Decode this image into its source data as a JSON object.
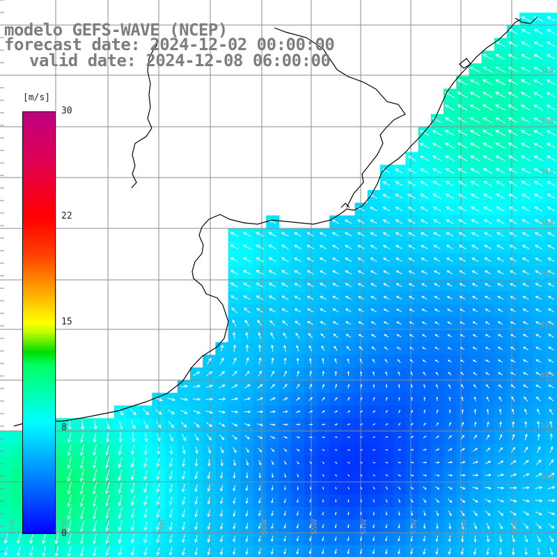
{
  "title": {
    "model": "modelo GEFS-WAVE (NCEP)",
    "forecast": "forecast date: 2024-12-02 00:00:00",
    "valid": "valid date: 2024-12-08 06:00:00"
  },
  "colorbar": {
    "unit": "[m/s]",
    "ticks": [
      "30",
      "22",
      "15",
      "8",
      "0"
    ],
    "colors": [
      "#0000ff",
      "#0080ff",
      "#00ffff",
      "#00dd00",
      "#ffff00",
      "#ff0000",
      "#c00080"
    ]
  },
  "lat_labels": [
    "32S",
    "33S",
    "34S",
    "35S",
    "36S",
    "37S",
    "38S",
    "39S",
    "40S"
  ],
  "lon_labels": [
    "6?W",
    "6?W",
    "58W",
    "56W",
    "55W",
    "54W",
    "53W",
    "52W",
    "51W"
  ],
  "colors": {
    "land": "#ffffff",
    "coast": "#000000",
    "grid": "#8a8a8a",
    "arrow": "#ffffff",
    "title": "#7d7d7d"
  }
}
